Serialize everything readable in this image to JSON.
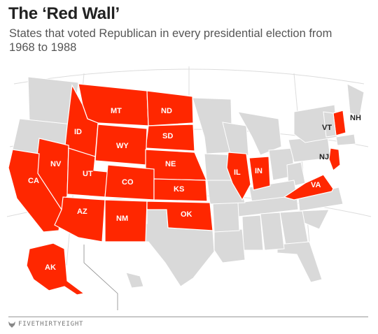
{
  "title": "The ‘Red Wall’",
  "subtitle": "States that voted Republican in every presidential election from 1968 to 1988",
  "colors": {
    "red": "#ff2700",
    "gray": "#d9d9d9",
    "border": "#ffffff",
    "label_dark": "#222222"
  },
  "states": {
    "MT": "MT",
    "ND": "ND",
    "ID": "ID",
    "SD": "SD",
    "WY": "WY",
    "NV": "NV",
    "NE": "NE",
    "UT": "UT",
    "CO": "CO",
    "CA": "CA",
    "KS": "KS",
    "IL": "IL",
    "IN": "IN",
    "AZ": "AZ",
    "NM": "NM",
    "OK": "OK",
    "VA": "VA",
    "NJ": "NJ",
    "NH": "NH",
    "VT": "VT",
    "AK": "AK"
  },
  "footer": {
    "icon": "fivethirtyeight-fox-icon",
    "brand": "FIVETHIRTYEIGHT"
  }
}
